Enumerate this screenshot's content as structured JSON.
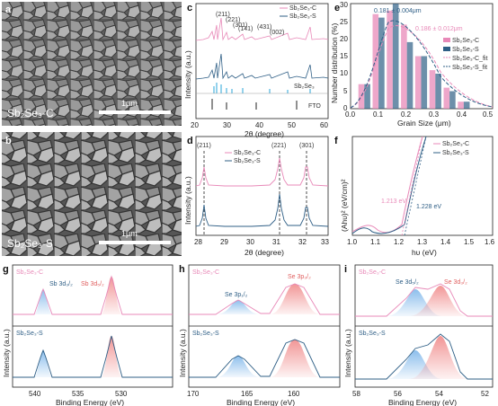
{
  "colors": {
    "c": "#e889b8",
    "s": "#2f5f86",
    "ref": "#2aa6d8",
    "gauss1": "#7fb7ea",
    "gauss2": "#f08a8a",
    "hist": [
      "#e89fc6",
      "#f2d48e",
      "#bcd6a0",
      "#a9c6e8"
    ]
  },
  "panel_a": {
    "letter": "a",
    "sample": "Sb₂Se₃-C",
    "scale": "1μm"
  },
  "panel_b": {
    "letter": "b",
    "sample": "Sb₂Se₃-S",
    "scale": "1μm"
  },
  "panel_c": {
    "letter": "c",
    "xlabel": "2θ (degree)",
    "ylabel": "Intensity (a.u.)",
    "xticks": [
      "20",
      "30",
      "40",
      "50",
      "60"
    ],
    "legend": [
      "Sb₂Se₃-C",
      "Sb₂Se₃-S"
    ],
    "ref_label": "Sb₂Se₃",
    "fto_label": "FTO",
    "peaks": [
      "(211)",
      "(221)",
      "(301)",
      "(141)",
      "(431)",
      "(002)"
    ]
  },
  "panel_d": {
    "letter": "d",
    "xlabel": "2θ (degree)",
    "ylabel": "Intensity (a.u.)",
    "xticks": [
      "28",
      "29",
      "30",
      "31",
      "32",
      "33"
    ],
    "legend": [
      "Sb₂Se₃-C",
      "Sb₂Se₃-S"
    ],
    "peaks": [
      "(211)",
      "(221)",
      "(301)"
    ]
  },
  "panel_e": {
    "letter": "e",
    "xlabel": "Grain Size (μm)",
    "ylabel": "Number distribution (%)",
    "xticks": [
      "0.0",
      "0.1",
      "0.2",
      "0.3",
      "0.4",
      "0.5"
    ],
    "yticks": [
      "0",
      "5",
      "10",
      "15",
      "20",
      "25",
      "30"
    ],
    "legend": [
      "Sb₂Se₃-C",
      "Sb₂Se₃-S",
      "Sb₂Se₃-C_fit",
      "Sb₂Se₃-S_fit"
    ],
    "note_s": "0.181 ± 0.004μm",
    "note_c": "0.186 ± 0.012μm"
  },
  "panel_f": {
    "letter": "f",
    "xlabel": "hυ (eV)",
    "ylabel": "(Ahυ)² (eV/cm)²",
    "xticks": [
      "1.0",
      "1.1",
      "1.2",
      "1.3",
      "1.4",
      "1.5",
      "1.6"
    ],
    "legend": [
      "Sb₂Se₃-C",
      "Sb₂Se₃-S"
    ],
    "eg_c": "1.213 eV",
    "eg_s": "1.228 eV"
  },
  "panel_g": {
    "letter": "g",
    "xlabel": "Binding Energy (eV)",
    "ylabel": "Intensity (a.u.)",
    "xticks": [
      "540",
      "535",
      "530"
    ],
    "top": "Sb₂Se₃-C",
    "bottom": "Sb₂Se₃-S",
    "peak1": "Sb 3d₃/₂",
    "peak2": "Sb 3d₅/₂"
  },
  "panel_h": {
    "letter": "h",
    "xlabel": "Binding Energy (eV)",
    "ylabel": "Intensity (a.u.)",
    "xticks": [
      "170",
      "165",
      "160"
    ],
    "top": "Sb₂Se₃-C",
    "bottom": "Sb₂Se₃-S",
    "peak1": "Se 3p₁/₂",
    "peak2": "Se 3p₃/₂"
  },
  "panel_i": {
    "letter": "i",
    "xlabel": "Binding Energy (eV)",
    "ylabel": "Intensity (a.u.)",
    "xticks": [
      "58",
      "56",
      "54",
      "52"
    ],
    "top": "Sb₂Se₃-C",
    "bottom": "Sb₂Se₃-S",
    "peak1": "Se 3d₅/₂",
    "peak2": "Se 3d₃/₂"
  },
  "chart_data": [
    {
      "panel": "e",
      "type": "bar",
      "title": "",
      "xlabel": "Grain Size (μm)",
      "ylabel": "Number distribution (%)",
      "xlim": [
        0,
        0.5
      ],
      "ylim": [
        0,
        30
      ],
      "x": [
        0.05,
        0.1,
        0.15,
        0.2,
        0.25,
        0.3,
        0.35,
        0.4
      ],
      "series": [
        {
          "name": "Sb₂Se₃-C",
          "values": [
            7,
            27,
            28,
            24,
            15,
            11,
            6,
            2
          ]
        },
        {
          "name": "Sb₂Se₃-S",
          "values": [
            7,
            26,
            30,
            19,
            15,
            10,
            5,
            2
          ]
        }
      ]
    },
    {
      "panel": "f",
      "type": "line",
      "xlabel": "hυ (eV)",
      "ylabel": "(Ahυ)² (eV/cm)²",
      "xlim": [
        1.0,
        1.6
      ],
      "series": [
        {
          "name": "Sb₂Se₃-C",
          "bandgap_eV": 1.213
        },
        {
          "name": "Sb₂Se₃-S",
          "bandgap_eV": 1.228
        }
      ]
    }
  ]
}
